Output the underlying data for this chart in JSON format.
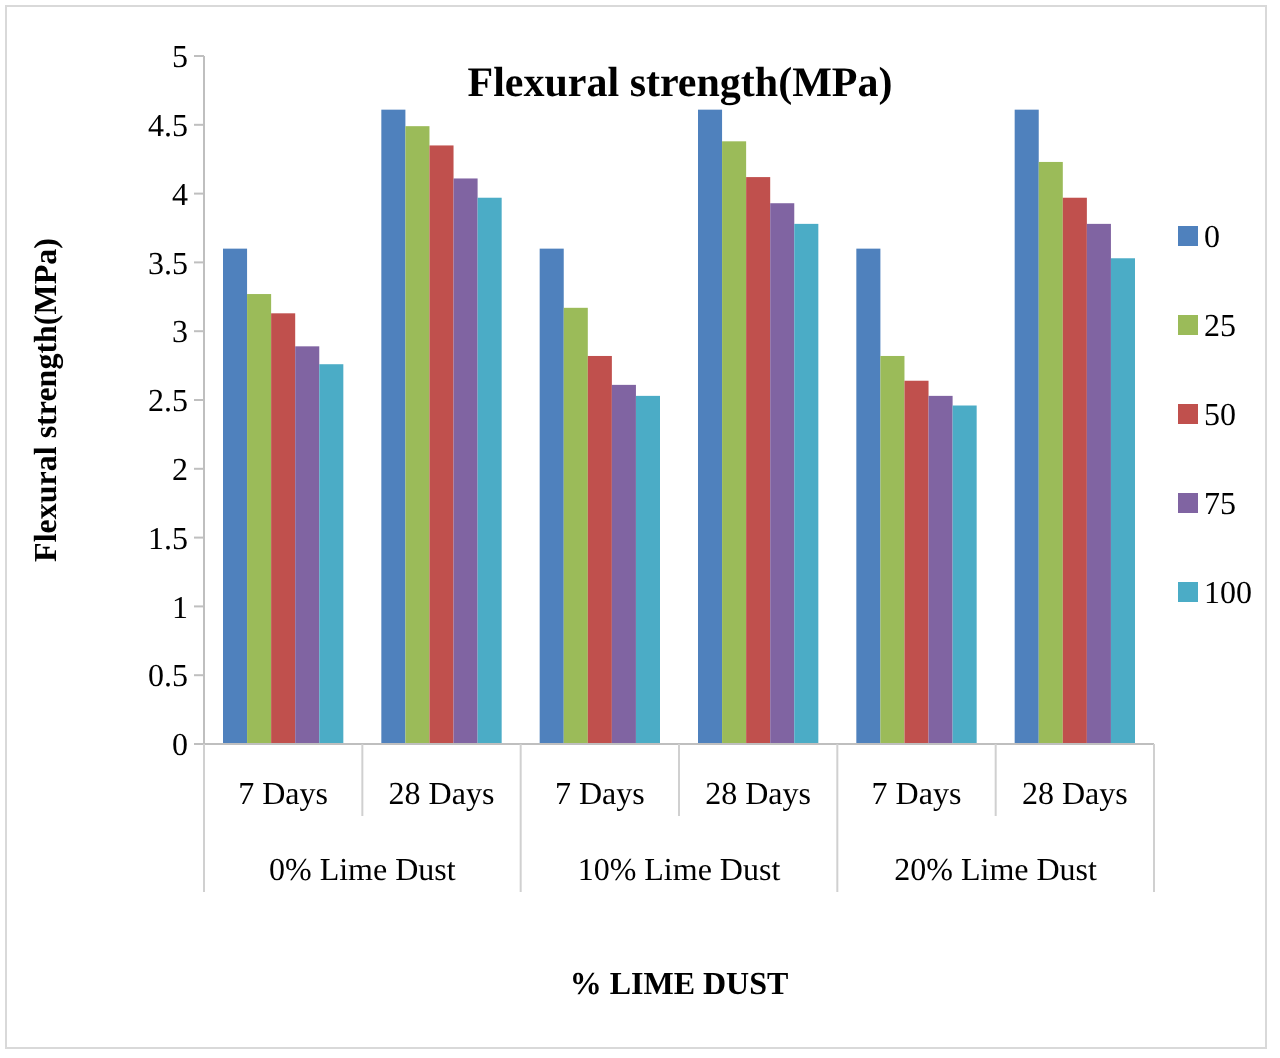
{
  "chart_data": {
    "type": "bar",
    "title": "Flexural strength(MPa)",
    "xlabel": "% LIME DUST",
    "ylabel": "Flexural strength(MPa)",
    "categories": [
      "7 Days",
      "28 Days",
      "7 Days",
      "28 Days",
      "7 Days",
      "28 Days"
    ],
    "annotations": [
      "0% Lime Dust",
      "10% Lime Dust",
      "20% Lime Dust"
    ],
    "series": [
      {
        "name": "0",
        "color": "#4f81bd",
        "values": [
          3.6,
          4.61,
          3.6,
          4.61,
          3.6,
          4.61
        ]
      },
      {
        "name": "25",
        "color": "#9bbb59",
        "values": [
          3.27,
          4.49,
          3.17,
          4.38,
          2.82,
          4.23
        ]
      },
      {
        "name": "50",
        "color": "#c0504d",
        "values": [
          3.13,
          4.35,
          2.82,
          4.12,
          2.64,
          3.97
        ]
      },
      {
        "name": "75",
        "color": "#8064a2",
        "values": [
          2.89,
          4.11,
          2.61,
          3.93,
          2.53,
          3.78
        ]
      },
      {
        "name": "100",
        "color": "#4bacc6",
        "values": [
          2.76,
          3.97,
          2.53,
          3.78,
          2.46,
          3.53
        ]
      }
    ],
    "ylim": [
      0,
      5
    ],
    "yticks": [
      0,
      0.5,
      1,
      1.5,
      2,
      2.5,
      3,
      3.5,
      4,
      4.5,
      5
    ],
    "grid": false,
    "legend": "right"
  }
}
